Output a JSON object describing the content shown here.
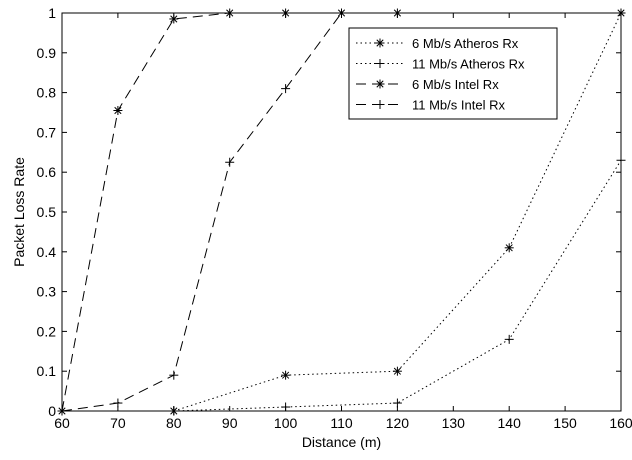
{
  "chart_data": {
    "type": "line",
    "title": "",
    "xlabel": "Distance (m)",
    "ylabel": "Packet Loss Rate",
    "xlim": [
      60,
      160
    ],
    "ylim": [
      0,
      1
    ],
    "xticks": [
      "60",
      "70",
      "80",
      "90",
      "100",
      "110",
      "120",
      "130",
      "140",
      "150",
      "160"
    ],
    "yticks": [
      "0",
      "0.1",
      "0.2",
      "0.3",
      "0.4",
      "0.5",
      "0.6",
      "0.7",
      "0.8",
      "0.9",
      "1"
    ],
    "grid": false,
    "legend_position": "top-right",
    "series": [
      {
        "name": "6 Mb/s Atheros Rx",
        "line_style": "dotted",
        "marker": "asterisk",
        "x": [
          80,
          100,
          120,
          140,
          160
        ],
        "y": [
          0,
          0.09,
          0.1,
          0.41,
          1.0
        ]
      },
      {
        "name": "11 Mb/s Atheros Rx",
        "line_style": "dotted",
        "marker": "plus",
        "x": [
          80,
          100,
          120,
          140,
          160
        ],
        "y": [
          0,
          0.01,
          0.02,
          0.18,
          0.63
        ]
      },
      {
        "name": "6 Mb/s Intel Rx",
        "line_style": "dashed",
        "marker": "asterisk",
        "x": [
          60,
          70,
          80,
          90,
          100,
          110,
          120
        ],
        "y": [
          0,
          0.755,
          0.985,
          1.0,
          1.0,
          1.0,
          1.0
        ]
      },
      {
        "name": "11 Mb/s Intel Rx",
        "line_style": "dashed",
        "marker": "plus",
        "x": [
          60,
          70,
          80,
          90,
          100,
          110
        ],
        "y": [
          0,
          0.02,
          0.09,
          0.625,
          0.81,
          1.0
        ]
      }
    ]
  }
}
